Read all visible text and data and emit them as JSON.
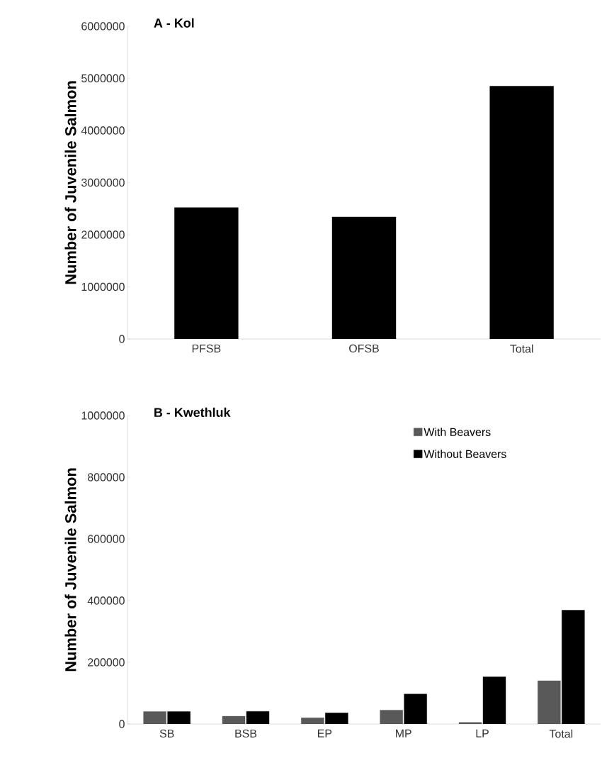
{
  "chart_data": [
    {
      "type": "bar",
      "title": "A - Kol",
      "ylabel": "Number of Juvenile Salmon",
      "categories": [
        "PFSB",
        "OFSB",
        "Total"
      ],
      "series": [
        {
          "color": "#000000",
          "values": [
            2520000,
            2340000,
            4850000
          ]
        }
      ],
      "ylim": [
        0,
        6000000
      ],
      "yticks": [
        0,
        1000000,
        2000000,
        3000000,
        4000000,
        5000000,
        6000000
      ],
      "grid": false,
      "legend": false
    },
    {
      "type": "bar",
      "title": "B - Kwethluk",
      "ylabel": "Number of Juvenile Salmon",
      "categories": [
        "SB",
        "BSB",
        "EP",
        "MP",
        "LP",
        "Total"
      ],
      "series": [
        {
          "name": "With Beavers",
          "color": "#595959",
          "values": [
            40000,
            25000,
            20000,
            45000,
            5000,
            140000
          ]
        },
        {
          "name": "Without Beavers",
          "color": "#000000",
          "values": [
            40000,
            41000,
            36000,
            97000,
            153000,
            369000
          ]
        }
      ],
      "ylim": [
        0,
        1000000
      ],
      "yticks": [
        0,
        200000,
        400000,
        600000,
        800000,
        1000000
      ],
      "grid": false,
      "legend": "top right"
    }
  ]
}
